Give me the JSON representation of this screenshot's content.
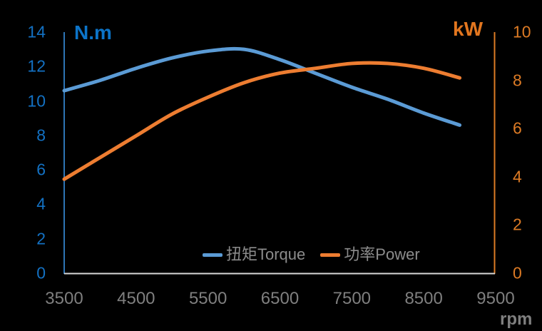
{
  "chart": {
    "background": "#000000",
    "plot_colors": {
      "torque_curve": "#5B9BD5",
      "power_curve": "#ED7D31",
      "left_axis_line": "#2E75B6",
      "right_axis_line": "#DD7B25",
      "bottom_axis_line": "#D9D9D9",
      "tick_text_left": "#1371C3",
      "tick_text_right": "#DD7B25",
      "tick_text_x": "#7F7F7F",
      "legend_text": "#8C8C8C"
    }
  },
  "chart_data": {
    "type": "line",
    "x": [
      3500,
      4000,
      4500,
      5000,
      5500,
      6000,
      6500,
      7000,
      7500,
      8000,
      8500,
      9000
    ],
    "series": [
      {
        "name": "扭矩Torque",
        "axis": "left",
        "unit": "N.m",
        "color": "#5B9BD5",
        "values": [
          10.6,
          11.2,
          11.9,
          12.5,
          12.9,
          13.0,
          12.4,
          11.6,
          10.8,
          10.1,
          9.3,
          8.6
        ]
      },
      {
        "name": "功率Power",
        "axis": "right",
        "unit": "kW",
        "color": "#ED7D31",
        "values": [
          3.9,
          4.8,
          5.7,
          6.6,
          7.3,
          7.9,
          8.3,
          8.5,
          8.7,
          8.7,
          8.5,
          8.1
        ]
      }
    ],
    "left_axis": {
      "title": "N.m",
      "min": 0,
      "max": 14,
      "ticks": [
        14,
        12,
        10,
        8,
        6,
        4,
        2,
        0
      ]
    },
    "right_axis": {
      "title": "kW",
      "min": 0,
      "max": 10,
      "ticks": [
        10,
        8,
        6,
        4,
        2,
        0
      ]
    },
    "x_axis": {
      "title": "rpm",
      "min": 3500,
      "max": 9500,
      "ticks": [
        3500,
        4500,
        5500,
        6500,
        7500,
        8500,
        9500
      ]
    },
    "grid": false,
    "legend_position": "bottom-inside"
  }
}
